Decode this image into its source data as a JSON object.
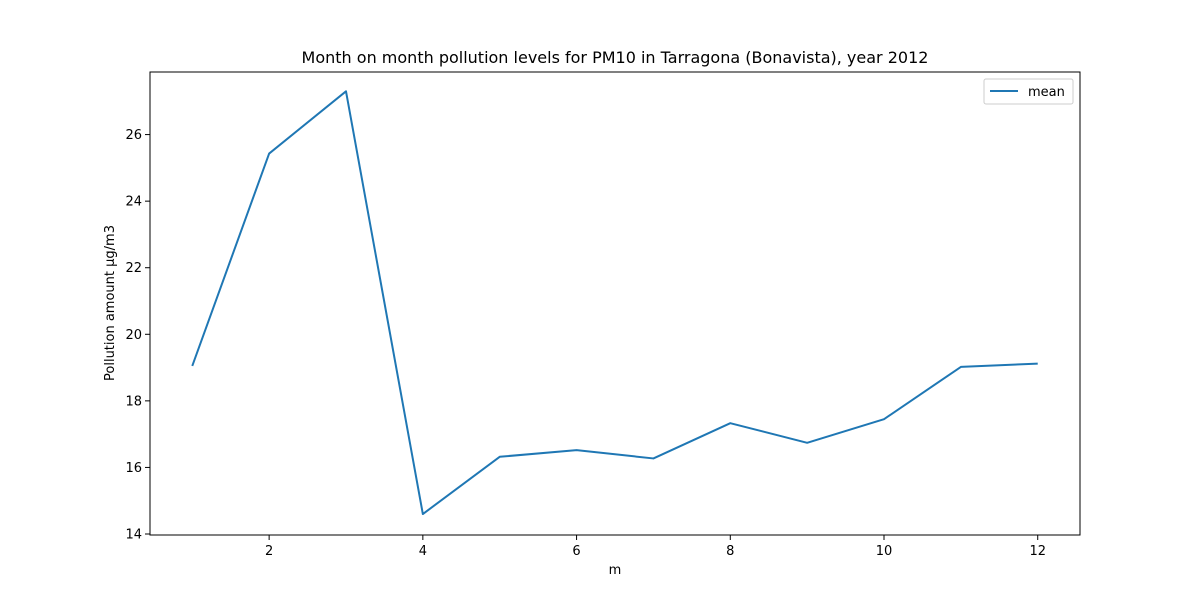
{
  "chart_data": {
    "type": "line",
    "title": "Month on month pollution levels for PM10 in Tarragona (Bonavista), year 2012",
    "xlabel": "m",
    "ylabel": "Pollution amount µg/m3",
    "x": [
      1,
      2,
      3,
      4,
      5,
      6,
      7,
      8,
      9,
      10,
      11,
      12
    ],
    "series": [
      {
        "name": "mean",
        "color": "#1f77b4",
        "values": [
          19.05,
          25.43,
          27.3,
          14.6,
          16.32,
          16.52,
          16.27,
          17.33,
          16.74,
          17.45,
          19.02,
          19.12
        ]
      }
    ],
    "xlim": [
      0.45,
      12.55
    ],
    "ylim": [
      13.97,
      27.88
    ],
    "xticks": [
      2,
      4,
      6,
      8,
      10,
      12
    ],
    "yticks": [
      14,
      16,
      18,
      20,
      22,
      24,
      26
    ],
    "grid": false,
    "legend_position": "top-right"
  }
}
